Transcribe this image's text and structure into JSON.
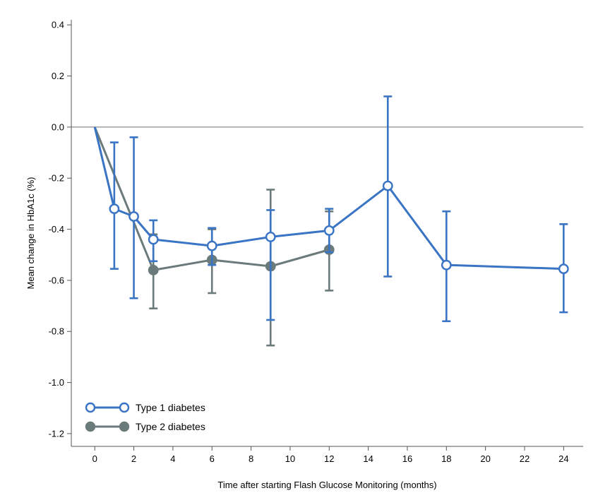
{
  "chart_data": {
    "type": "line",
    "xlabel": "Time after starting Flash Glucose Monitoring (months)",
    "ylabel": "Mean change in HbA1c (%)",
    "xlim": [
      -1.2,
      25
    ],
    "ylim": [
      -1.25,
      0.42
    ],
    "xticks": [
      0,
      2,
      4,
      6,
      8,
      10,
      12,
      14,
      16,
      18,
      20,
      22,
      24
    ],
    "yticks": [
      0.4,
      0.2,
      0.0,
      -0.2,
      -0.4,
      -0.6,
      -0.8,
      -1.0,
      -1.2
    ],
    "ytick_labels": [
      "0.4",
      "0.2",
      "0.0",
      "-0.2",
      "-0.4",
      "-0.6",
      "-0.8",
      "-1.0",
      "-1.2"
    ],
    "reference_line_y": 0.0,
    "legend_position": "bottom-left",
    "series": [
      {
        "name": "Type 1 diabetes",
        "color": "#3a74c4",
        "marker": "open-circle",
        "origin": [
          0,
          0.0
        ],
        "points": [
          {
            "x": 1,
            "y": -0.32,
            "lo": -0.555,
            "hi": -0.06
          },
          {
            "x": 2,
            "y": -0.35,
            "lo": -0.67,
            "hi": -0.04
          },
          {
            "x": 3,
            "y": -0.44,
            "lo": -0.525,
            "hi": -0.365
          },
          {
            "x": 6,
            "y": -0.465,
            "lo": -0.54,
            "hi": -0.395
          },
          {
            "x": 9,
            "y": -0.43,
            "lo": -0.755,
            "hi": -0.325
          },
          {
            "x": 12,
            "y": -0.405,
            "lo": -0.49,
            "hi": -0.32
          },
          {
            "x": 15,
            "y": -0.23,
            "lo": -0.585,
            "hi": 0.12
          },
          {
            "x": 18,
            "y": -0.54,
            "lo": -0.76,
            "hi": -0.33
          },
          {
            "x": 24,
            "y": -0.555,
            "lo": -0.725,
            "hi": -0.38
          }
        ]
      },
      {
        "name": "Type 2 diabetes",
        "color": "#6b7a7a",
        "marker": "filled-circle",
        "origin": [
          0,
          0.0
        ],
        "points": [
          {
            "x": 3,
            "y": -0.56,
            "lo": -0.71,
            "hi": -0.42
          },
          {
            "x": 6,
            "y": -0.52,
            "lo": -0.65,
            "hi": -0.4
          },
          {
            "x": 9,
            "y": -0.545,
            "lo": -0.855,
            "hi": -0.245
          },
          {
            "x": 12,
            "y": -0.48,
            "lo": -0.64,
            "hi": -0.33
          }
        ]
      }
    ]
  }
}
